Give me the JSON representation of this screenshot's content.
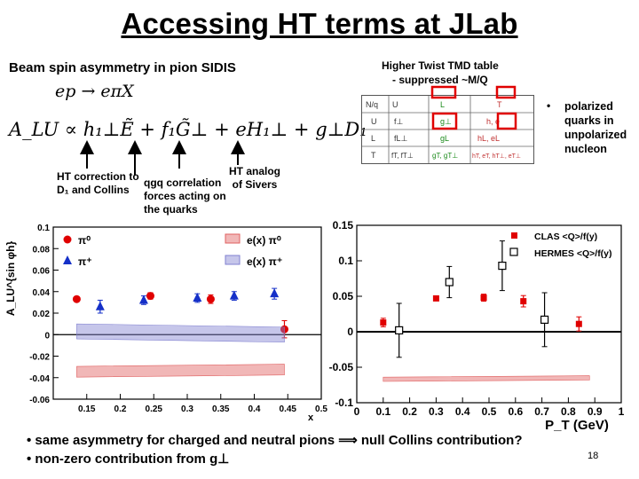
{
  "slide": {
    "title": "Accessing HT terms at JLab",
    "left_heading": "Beam spin asymmetry in pion SIDIS",
    "right_heading_line1": "Higher Twist TMD table",
    "right_heading_line2": "- suppressed ~M/Q",
    "process": "ep → eπX",
    "formula": "A_LU ∝ h₁⊥Ẽ + f₁G̃⊥ + eH₁⊥ + g⊥D₁",
    "annotations": {
      "ht_collins_line1": "HT correction to",
      "ht_collins_line2": "D₁ and Collins",
      "qgq_line1": "qgq correlation",
      "qgq_line2": "forces acting on",
      "qgq_line3": "the quarks",
      "sivers_line1": "HT analog",
      "sivers_line2": "of Sivers"
    },
    "polarized_note": [
      "polarized",
      "quarks in",
      "unpolarized",
      "nucleon"
    ],
    "bullets": [
      "same asymmetry for charged and neutral pions ⟹ null Collins contribution?",
      "non-zero contribution from g⊥"
    ],
    "page_number": "18"
  },
  "tmd_table": {
    "header": [
      "N/q",
      "U",
      "L",
      "T"
    ],
    "rows": [
      [
        "U",
        "f⊥",
        "g⊥",
        "h, e"
      ],
      [
        "L",
        "fL⊥",
        "gL",
        "hL, eL"
      ],
      [
        "T",
        "fT, fT⊥",
        "gT, gT⊥",
        "hT, eT, hT⊥, eT⊥"
      ]
    ],
    "highlight_color": "#e00000"
  },
  "chart_data": [
    {
      "type": "scatter",
      "title": "",
      "xlabel": "x",
      "ylabel": "A_LU^{sin φh}",
      "xlim": [
        0.1,
        0.5
      ],
      "ylim": [
        -0.06,
        0.1
      ],
      "x_ticks": [
        0.15,
        0.2,
        0.25,
        0.3,
        0.35,
        0.4,
        0.45,
        0.5
      ],
      "y_ticks": [
        -0.06,
        -0.04,
        -0.02,
        0,
        0.02,
        0.04,
        0.06,
        0.08,
        0.1
      ],
      "legend_placement": "top",
      "series": [
        {
          "name": "π⁰",
          "marker": "circle",
          "color": "#e00000",
          "x": [
            0.135,
            0.245,
            0.335,
            0.445
          ],
          "y": [
            0.033,
            0.036,
            0.033,
            0.005
          ],
          "yerr": [
            0.002,
            0.003,
            0.004,
            0.008
          ]
        },
        {
          "name": "π⁺",
          "marker": "triangle",
          "color": "#1530c8",
          "x": [
            0.17,
            0.235,
            0.315,
            0.37,
            0.43
          ],
          "y": [
            0.026,
            0.032,
            0.034,
            0.036,
            0.038
          ],
          "yerr": [
            0.006,
            0.004,
            0.004,
            0.004,
            0.005
          ]
        },
        {
          "name": "e(x) π⁰",
          "type": "band",
          "color": "#e06060",
          "x": [
            0.135,
            0.445
          ],
          "y": [
            -0.0345,
            -0.0325
          ],
          "half_width": 0.005
        },
        {
          "name": "e(x) π⁺",
          "type": "band",
          "color": "#8080d0",
          "x": [
            0.135,
            0.445
          ],
          "y": [
            0.003,
            0.0
          ],
          "half_width": 0.007
        }
      ]
    },
    {
      "type": "scatter",
      "title": "",
      "xlabel": "P_T (GeV)",
      "ylabel": "",
      "xlim": [
        0,
        1
      ],
      "ylim": [
        -0.1,
        0.15
      ],
      "x_ticks": [
        0,
        0.1,
        0.2,
        0.3,
        0.4,
        0.5,
        0.6,
        0.7,
        0.8,
        0.9,
        1
      ],
      "y_ticks": [
        -0.1,
        -0.05,
        0,
        0.05,
        0.1,
        0.15
      ],
      "legend_placement": "top-right",
      "series": [
        {
          "name": "CLAS <Q>/f(y)",
          "marker": "square-filled",
          "color": "#e00000",
          "x": [
            0.1,
            0.3,
            0.48,
            0.63,
            0.84
          ],
          "y": [
            0.013,
            0.047,
            0.048,
            0.043,
            0.011
          ],
          "yerr": [
            0.006,
            0.003,
            0.005,
            0.008,
            0.01
          ]
        },
        {
          "name": "HERMES <Q>/f(y)",
          "marker": "square-open",
          "color": "#000000",
          "x": [
            0.16,
            0.35,
            0.55,
            0.71
          ],
          "y": [
            0.002,
            0.07,
            0.093,
            0.017
          ],
          "yerr": [
            0.038,
            0.022,
            0.035,
            0.038
          ]
        },
        {
          "name": "",
          "type": "band",
          "color": "#e06060",
          "x": [
            0.1,
            0.88
          ],
          "y": [
            -0.067,
            -0.065
          ],
          "half_width": 0.003
        }
      ]
    }
  ]
}
